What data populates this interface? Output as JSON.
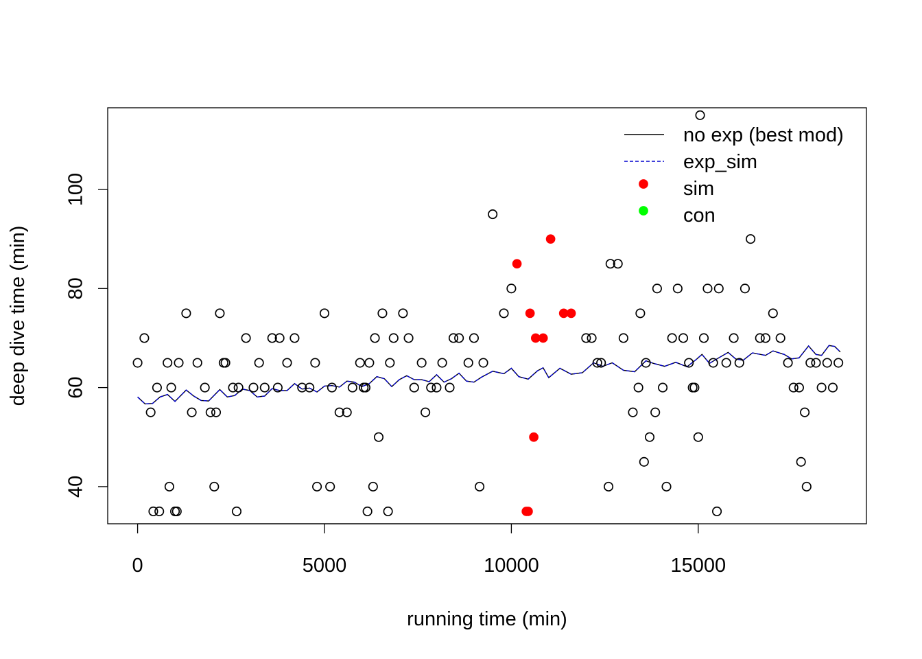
{
  "chart_data": {
    "type": "scatter",
    "title": "",
    "xlabel": "running time (min)",
    "ylabel": "deep dive time (min)",
    "xlim": [
      -800,
      19500
    ],
    "ylim": [
      32.5,
      116.5
    ],
    "x_ticks": [
      0,
      5000,
      10000,
      15000
    ],
    "y_ticks": [
      40,
      60,
      80,
      100
    ],
    "grid": false,
    "legend": {
      "position": "top-right",
      "entries": [
        {
          "label": "no exp (best mod)",
          "kind": "line",
          "color": "#000000",
          "dash": "solid"
        },
        {
          "label": "exp_sim",
          "kind": "line",
          "color": "#0000cd",
          "dash": "dashed"
        },
        {
          "label": "sim",
          "kind": "point",
          "color": "#ff0000"
        },
        {
          "label": "con",
          "kind": "point",
          "color": "#00ff00"
        }
      ]
    },
    "series": [
      {
        "name": "observed",
        "kind": "points",
        "style": "open-circle",
        "color": "#000000",
        "points": [
          [
            0,
            65
          ],
          [
            180,
            70
          ],
          [
            350,
            55
          ],
          [
            420,
            35
          ],
          [
            520,
            60
          ],
          [
            580,
            35
          ],
          [
            800,
            65
          ],
          [
            850,
            40
          ],
          [
            900,
            60
          ],
          [
            1000,
            35
          ],
          [
            1050,
            35
          ],
          [
            1100,
            65
          ],
          [
            1300,
            75
          ],
          [
            1450,
            55
          ],
          [
            1600,
            65
          ],
          [
            1800,
            60
          ],
          [
            1950,
            55
          ],
          [
            2050,
            40
          ],
          [
            2100,
            55
          ],
          [
            2200,
            75
          ],
          [
            2300,
            65
          ],
          [
            2350,
            65
          ],
          [
            2550,
            60
          ],
          [
            2650,
            35
          ],
          [
            2700,
            60
          ],
          [
            2900,
            70
          ],
          [
            3100,
            60
          ],
          [
            3250,
            65
          ],
          [
            3400,
            60
          ],
          [
            3600,
            70
          ],
          [
            3750,
            60
          ],
          [
            3800,
            70
          ],
          [
            4000,
            65
          ],
          [
            4200,
            70
          ],
          [
            4400,
            60
          ],
          [
            4600,
            60
          ],
          [
            4750,
            65
          ],
          [
            4800,
            40
          ],
          [
            5000,
            75
          ],
          [
            5150,
            40
          ],
          [
            5200,
            60
          ],
          [
            5400,
            55
          ],
          [
            5600,
            55
          ],
          [
            5750,
            60
          ],
          [
            5950,
            65
          ],
          [
            6050,
            60
          ],
          [
            6100,
            60
          ],
          [
            6150,
            35
          ],
          [
            6200,
            65
          ],
          [
            6300,
            40
          ],
          [
            6350,
            70
          ],
          [
            6450,
            50
          ],
          [
            6550,
            75
          ],
          [
            6700,
            35
          ],
          [
            6750,
            65
          ],
          [
            6850,
            70
          ],
          [
            7100,
            75
          ],
          [
            7250,
            70
          ],
          [
            7400,
            60
          ],
          [
            7600,
            65
          ],
          [
            7700,
            55
          ],
          [
            7850,
            60
          ],
          [
            8000,
            60
          ],
          [
            8150,
            65
          ],
          [
            8350,
            60
          ],
          [
            8450,
            70
          ],
          [
            8600,
            70
          ],
          [
            8850,
            65
          ],
          [
            9000,
            70
          ],
          [
            9150,
            40
          ],
          [
            9250,
            65
          ],
          [
            9500,
            95
          ],
          [
            9800,
            75
          ],
          [
            10000,
            80
          ],
          [
            12000,
            70
          ],
          [
            12150,
            70
          ],
          [
            12300,
            65
          ],
          [
            12400,
            65
          ],
          [
            12600,
            40
          ],
          [
            12650,
            85
          ],
          [
            12850,
            85
          ],
          [
            13000,
            70
          ],
          [
            13250,
            55
          ],
          [
            13400,
            60
          ],
          [
            13450,
            75
          ],
          [
            13550,
            45
          ],
          [
            13600,
            65
          ],
          [
            13700,
            50
          ],
          [
            13850,
            55
          ],
          [
            13900,
            80
          ],
          [
            14050,
            60
          ],
          [
            14150,
            40
          ],
          [
            14300,
            70
          ],
          [
            14450,
            80
          ],
          [
            14600,
            70
          ],
          [
            14750,
            65
          ],
          [
            14850,
            60
          ],
          [
            14900,
            60
          ],
          [
            15000,
            50
          ],
          [
            15050,
            115
          ],
          [
            15150,
            70
          ],
          [
            15250,
            80
          ],
          [
            15400,
            65
          ],
          [
            15500,
            35
          ],
          [
            15550,
            80
          ],
          [
            15750,
            65
          ],
          [
            15950,
            70
          ],
          [
            16100,
            65
          ],
          [
            16250,
            80
          ],
          [
            16400,
            90
          ],
          [
            16650,
            70
          ],
          [
            16800,
            70
          ],
          [
            17000,
            75
          ],
          [
            17200,
            70
          ],
          [
            17400,
            65
          ],
          [
            17550,
            60
          ],
          [
            17700,
            60
          ],
          [
            17750,
            45
          ],
          [
            17850,
            55
          ],
          [
            17900,
            40
          ],
          [
            18000,
            65
          ],
          [
            18150,
            65
          ],
          [
            18300,
            60
          ],
          [
            18450,
            65
          ],
          [
            18600,
            60
          ],
          [
            18750,
            65
          ]
        ]
      },
      {
        "name": "sim",
        "kind": "points",
        "style": "filled-circle",
        "color": "#ff0000",
        "points": [
          [
            10150,
            85
          ],
          [
            10400,
            35
          ],
          [
            10450,
            35
          ],
          [
            10500,
            75
          ],
          [
            10600,
            50
          ],
          [
            10650,
            70
          ],
          [
            10850,
            70
          ],
          [
            11050,
            90
          ],
          [
            11400,
            75
          ],
          [
            11600,
            75
          ]
        ]
      },
      {
        "name": "no exp (best mod)",
        "kind": "line",
        "color": "#000000",
        "dash": "solid",
        "points": [
          [
            0,
            58.1
          ],
          [
            200,
            56.7
          ],
          [
            400,
            56.8
          ],
          [
            600,
            58.1
          ],
          [
            800,
            58.6
          ],
          [
            1000,
            57.2
          ],
          [
            1300,
            59.5
          ],
          [
            1500,
            58.3
          ],
          [
            1700,
            57.4
          ],
          [
            1900,
            57.3
          ],
          [
            2200,
            59.6
          ],
          [
            2400,
            58.1
          ],
          [
            2600,
            58.4
          ],
          [
            2800,
            59.7
          ],
          [
            3000,
            59.4
          ],
          [
            3200,
            58.1
          ],
          [
            3400,
            58.3
          ],
          [
            3600,
            59.8
          ],
          [
            3800,
            59.4
          ],
          [
            4000,
            59.4
          ],
          [
            4200,
            60.8
          ],
          [
            4400,
            59.7
          ],
          [
            4600,
            59.9
          ],
          [
            4800,
            59.1
          ],
          [
            5000,
            60.3
          ],
          [
            5200,
            60.4
          ],
          [
            5400,
            60.1
          ],
          [
            5600,
            61.3
          ],
          [
            5800,
            61.1
          ],
          [
            6000,
            60.2
          ],
          [
            6200,
            60.8
          ],
          [
            6400,
            62.2
          ],
          [
            6600,
            61.8
          ],
          [
            6800,
            60.2
          ],
          [
            7000,
            61.6
          ],
          [
            7200,
            62.4
          ],
          [
            7400,
            61.6
          ],
          [
            7600,
            61.6
          ],
          [
            7800,
            61.2
          ],
          [
            8000,
            62.6
          ],
          [
            8200,
            61.1
          ],
          [
            8400,
            61.8
          ],
          [
            8600,
            62.9
          ],
          [
            8800,
            61.3
          ],
          [
            9000,
            61.1
          ],
          [
            9200,
            62.1
          ],
          [
            9500,
            63.3
          ],
          [
            9800,
            62.8
          ],
          [
            10000,
            63.9
          ],
          [
            10200,
            62.2
          ],
          [
            10450,
            61.7
          ],
          [
            10700,
            63.4
          ],
          [
            10850,
            64.0
          ],
          [
            11000,
            62.0
          ],
          [
            11300,
            63.9
          ],
          [
            11600,
            62.7
          ],
          [
            11900,
            63.0
          ],
          [
            12200,
            65.0
          ],
          [
            12450,
            64.3
          ],
          [
            12700,
            65.0
          ],
          [
            13000,
            63.5
          ],
          [
            13300,
            63.2
          ],
          [
            13600,
            65.4
          ],
          [
            13800,
            64.9
          ],
          [
            14100,
            64.3
          ],
          [
            14400,
            65.1
          ],
          [
            14700,
            64.2
          ],
          [
            14950,
            65.7
          ],
          [
            15100,
            66.7
          ],
          [
            15300,
            64.9
          ],
          [
            15500,
            65.8
          ],
          [
            15800,
            67.1
          ],
          [
            16000,
            65.8
          ],
          [
            16200,
            65.5
          ],
          [
            16450,
            67.0
          ],
          [
            16800,
            66.5
          ],
          [
            17000,
            67.4
          ],
          [
            17300,
            66.7
          ],
          [
            17500,
            65.8
          ],
          [
            17700,
            66.0
          ],
          [
            17950,
            68.4
          ],
          [
            18150,
            66.7
          ],
          [
            18300,
            66.5
          ],
          [
            18500,
            68.5
          ],
          [
            18650,
            68.3
          ],
          [
            18800,
            67.2
          ]
        ]
      },
      {
        "name": "exp_sim",
        "kind": "line",
        "color": "#0000cd",
        "dash": "dashed",
        "points": [
          [
            0,
            58.1
          ],
          [
            200,
            56.7
          ],
          [
            400,
            56.8
          ],
          [
            600,
            58.1
          ],
          [
            800,
            58.6
          ],
          [
            1000,
            57.2
          ],
          [
            1300,
            59.5
          ],
          [
            1500,
            58.3
          ],
          [
            1700,
            57.4
          ],
          [
            1900,
            57.3
          ],
          [
            2200,
            59.6
          ],
          [
            2400,
            58.1
          ],
          [
            2600,
            58.4
          ],
          [
            2800,
            59.7
          ],
          [
            3000,
            59.4
          ],
          [
            3200,
            58.1
          ],
          [
            3400,
            58.3
          ],
          [
            3600,
            59.8
          ],
          [
            3800,
            59.4
          ],
          [
            4000,
            59.4
          ],
          [
            4200,
            60.8
          ],
          [
            4400,
            59.7
          ],
          [
            4600,
            59.9
          ],
          [
            4800,
            59.1
          ],
          [
            5000,
            60.3
          ],
          [
            5200,
            60.4
          ],
          [
            5400,
            60.1
          ],
          [
            5600,
            61.3
          ],
          [
            5800,
            61.1
          ],
          [
            6000,
            60.2
          ],
          [
            6200,
            60.8
          ],
          [
            6400,
            62.2
          ],
          [
            6600,
            61.8
          ],
          [
            6800,
            60.2
          ],
          [
            7000,
            61.6
          ],
          [
            7200,
            62.4
          ],
          [
            7400,
            61.6
          ],
          [
            7600,
            61.6
          ],
          [
            7800,
            61.2
          ],
          [
            8000,
            62.6
          ],
          [
            8200,
            61.1
          ],
          [
            8400,
            61.8
          ],
          [
            8600,
            62.9
          ],
          [
            8800,
            61.3
          ],
          [
            9000,
            61.1
          ],
          [
            9200,
            62.1
          ],
          [
            9500,
            63.3
          ],
          [
            9800,
            62.8
          ],
          [
            10000,
            63.9
          ],
          [
            10200,
            62.2
          ],
          [
            10450,
            61.7
          ],
          [
            10700,
            63.4
          ],
          [
            10850,
            64.0
          ],
          [
            11000,
            62.0
          ],
          [
            11300,
            63.9
          ],
          [
            11600,
            62.7
          ],
          [
            11900,
            63.0
          ],
          [
            12200,
            65.0
          ],
          [
            12450,
            64.3
          ],
          [
            12700,
            65.0
          ],
          [
            13000,
            63.5
          ],
          [
            13300,
            63.2
          ],
          [
            13600,
            65.4
          ],
          [
            13800,
            64.9
          ],
          [
            14100,
            64.3
          ],
          [
            14400,
            65.1
          ],
          [
            14700,
            64.2
          ],
          [
            14950,
            65.7
          ],
          [
            15100,
            66.7
          ],
          [
            15300,
            64.9
          ],
          [
            15500,
            65.8
          ],
          [
            15800,
            67.1
          ],
          [
            16000,
            65.8
          ],
          [
            16200,
            65.5
          ],
          [
            16450,
            67.0
          ],
          [
            16800,
            66.5
          ],
          [
            17000,
            67.4
          ],
          [
            17300,
            66.7
          ],
          [
            17500,
            65.8
          ],
          [
            17700,
            66.0
          ],
          [
            17950,
            68.4
          ],
          [
            18150,
            66.7
          ],
          [
            18300,
            66.5
          ],
          [
            18500,
            68.5
          ],
          [
            18650,
            68.3
          ],
          [
            18800,
            67.2
          ]
        ]
      }
    ]
  }
}
